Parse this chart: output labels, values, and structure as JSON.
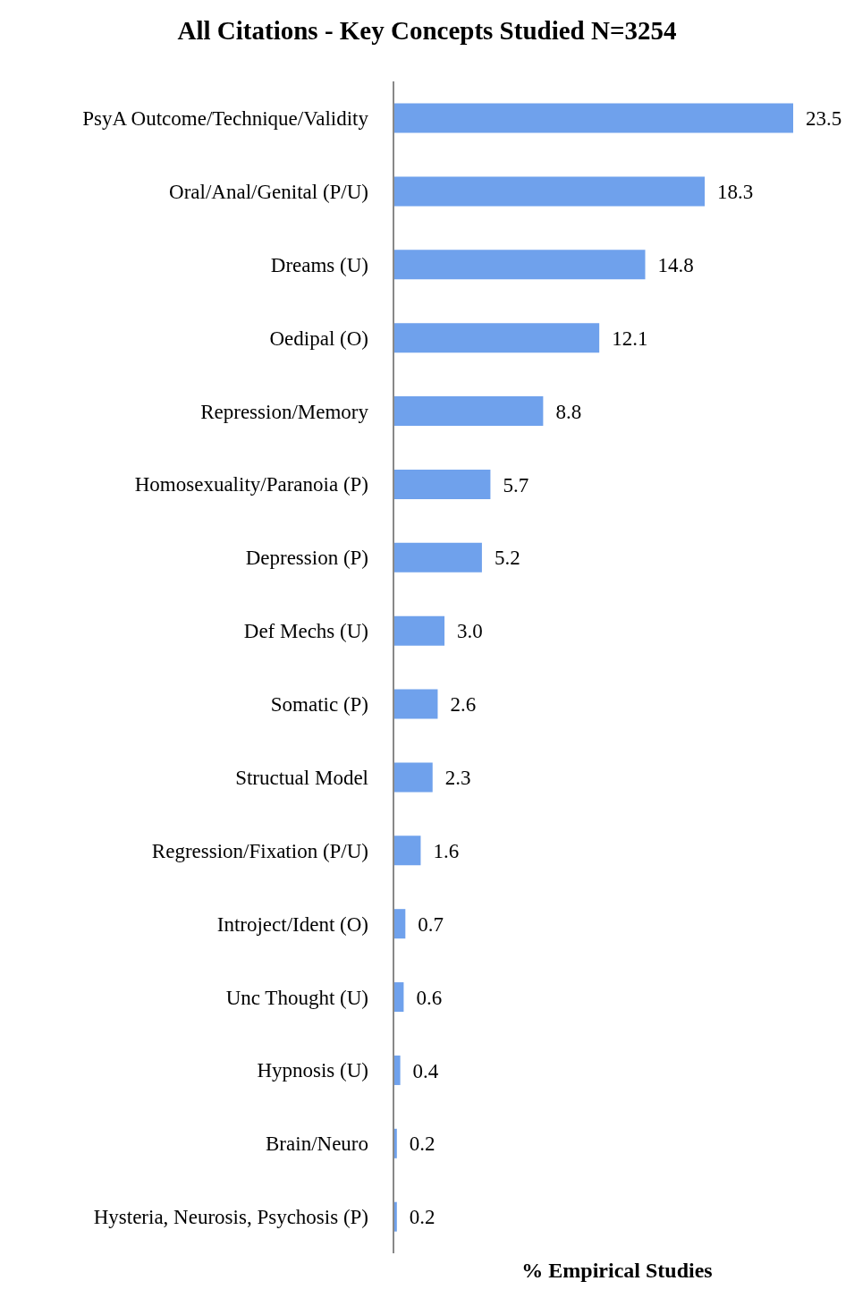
{
  "chart_data": {
    "type": "bar",
    "orientation": "horizontal",
    "title": "All Citations - Key Concepts Studied N=3254",
    "xlabel": "% Empirical Studies",
    "categories": [
      "PsyA Outcome/Technique/Validity",
      "Oral/Anal/Genital (P/U)",
      "Dreams (U)",
      "Oedipal (O)",
      "Repression/Memory",
      "Homosexuality/Paranoia (P)",
      "Depression (P)",
      "Def Mechs (U)",
      "Somatic (P)",
      "Structual Model",
      "Regression/Fixation (P/U)",
      "Introject/Ident (O)",
      "Unc Thought (U)",
      "Hypnosis (U)",
      "Brain/Neuro",
      "Hysteria, Neurosis, Psychosis (P)"
    ],
    "values": [
      23.5,
      18.3,
      14.8,
      12.1,
      8.8,
      5.7,
      5.2,
      3.0,
      2.6,
      2.3,
      1.6,
      0.7,
      0.6,
      0.4,
      0.2,
      0.2
    ],
    "value_labels": [
      "23.5",
      "18.3",
      "14.8",
      "12.1",
      "8.8",
      "5.7",
      "5.2",
      "3.0",
      "2.6",
      "2.3",
      "1.6",
      "0.7",
      "0.6",
      "0.4",
      "0.2",
      "0.2"
    ],
    "color": "#6fa1ec"
  }
}
